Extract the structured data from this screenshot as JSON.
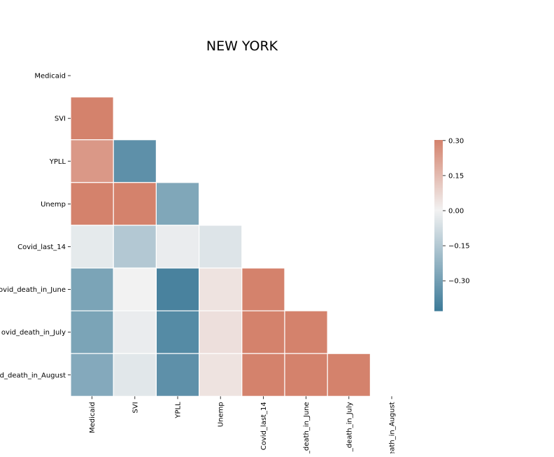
{
  "chart_data": {
    "type": "heatmap",
    "title": "NEW YORK",
    "variables": [
      "Medicaid",
      "SVI",
      "YPLL",
      "Unemp",
      "Covid_last_14",
      "Covid_death_in_June",
      "Covid_death_in_July",
      "Covid_death_in_August"
    ],
    "row_tick_labels": [
      "Medicaid",
      "SVI",
      "YPLL",
      "Unemp",
      "Covid_last_14",
      "ovid_death_in_June",
      "ovid_death_in_July",
      "d_death_in_August"
    ],
    "col_tick_labels": [
      "Medicaid",
      "SVI",
      "YPLL",
      "Unemp",
      "Covid_last_14",
      "_death_in_June",
      "_death_in_July",
      "eath_in_August"
    ],
    "mask": "upper-triangle-including-diagonal",
    "values": [
      [
        null,
        null,
        null,
        null,
        null,
        null,
        null,
        null
      ],
      [
        0.3,
        null,
        null,
        null,
        null,
        null,
        null,
        null
      ],
      [
        0.24,
        -0.35,
        null,
        null,
        null,
        null,
        null,
        null
      ],
      [
        0.3,
        0.3,
        -0.27,
        null,
        null,
        null,
        null,
        null
      ],
      [
        -0.03,
        -0.15,
        -0.02,
        -0.05,
        null,
        null,
        null,
        null
      ],
      [
        -0.28,
        0.0,
        -0.4,
        0.04,
        0.3,
        null,
        null,
        null
      ],
      [
        -0.28,
        -0.02,
        -0.37,
        0.05,
        0.3,
        0.3,
        null,
        null
      ],
      [
        -0.26,
        -0.04,
        -0.35,
        0.04,
        0.3,
        0.3,
        0.3,
        null
      ]
    ],
    "colorbar": {
      "vmin": -0.43,
      "vmax": 0.3,
      "ticks": [
        0.3,
        0.15,
        0.0,
        -0.15,
        -0.3
      ],
      "tick_labels": [
        "0.30",
        "0.15",
        "0.00",
        "−0.15",
        "−0.30"
      ],
      "colormap": "diverging blue-white-red",
      "color_low": "#3c7a98",
      "color_mid": "#f2f2f2",
      "color_high": "#d4826c"
    },
    "cell_border_color": "#ffffff"
  }
}
